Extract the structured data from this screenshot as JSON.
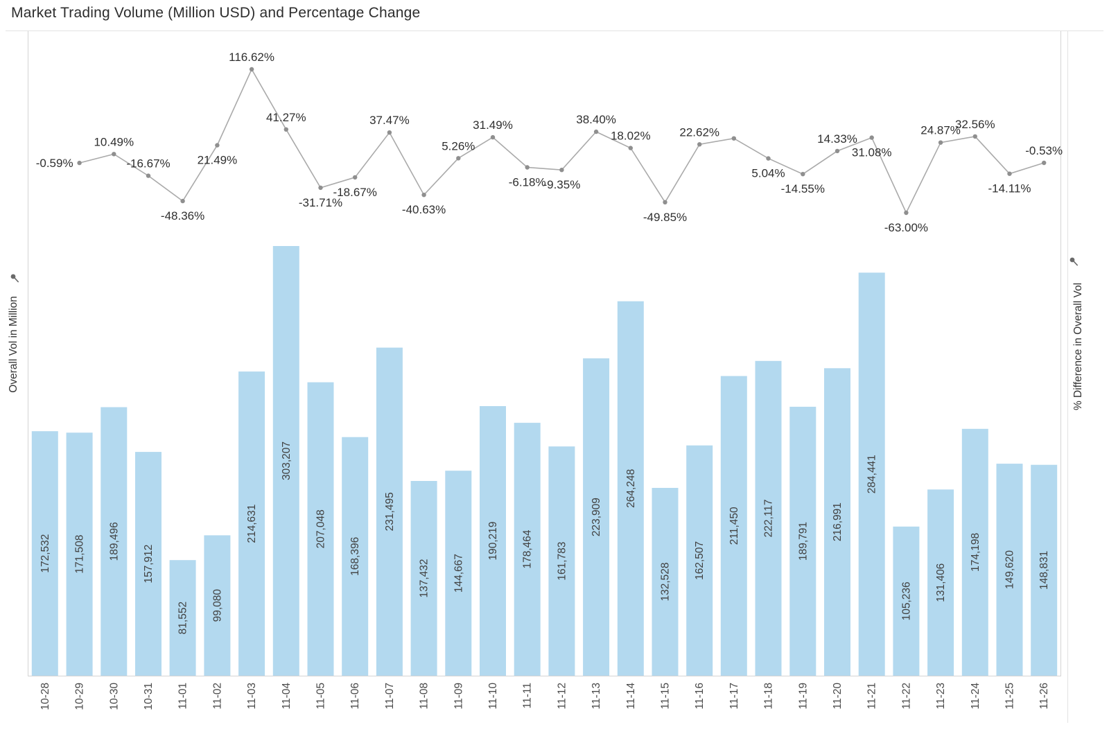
{
  "title": "Market Trading Volume (Million USD) and Percentage Change",
  "axes": {
    "left_label": "Overall Vol in Million",
    "right_label": "% Difference in Overall Vol"
  },
  "colors": {
    "bar": "#b3d9ef",
    "line": "#aaaaaa",
    "marker": "#8f8f8f",
    "bar_label": "#414141",
    "pct_label": "#2f2f2f",
    "axis_line": "#d4d4d4"
  },
  "chart_data": {
    "type": "bar",
    "subtype": "combo-bar-line-dual-axis",
    "categories": [
      "10-28",
      "10-29",
      "10-30",
      "10-31",
      "11-01",
      "11-02",
      "11-03",
      "11-04",
      "11-05",
      "11-06",
      "11-07",
      "11-08",
      "11-09",
      "11-10",
      "11-11",
      "11-12",
      "11-13",
      "11-14",
      "11-15",
      "11-16",
      "11-17",
      "11-18",
      "11-19",
      "11-20",
      "11-21",
      "11-22",
      "11-23",
      "11-24",
      "11-25",
      "11-26"
    ],
    "bar_series": {
      "name": "Overall Vol in Million",
      "values": [
        172532,
        171508,
        189496,
        157912,
        81552,
        99080,
        214631,
        303207,
        207048,
        168396,
        231495,
        137432,
        144667,
        190219,
        178464,
        161783,
        223909,
        264248,
        132528,
        162507,
        211450,
        222117,
        189791,
        216991,
        284441,
        105236,
        131406,
        174198,
        149620,
        148831
      ],
      "labels": [
        "172,532",
        "171,508",
        "189,496",
        "157,912",
        "81,552",
        "99,080",
        "214,631",
        "303,207",
        "207,048",
        "168,396",
        "231,495",
        "137,432",
        "144,667",
        "190,219",
        "178,464",
        "161,783",
        "223,909",
        "264,248",
        "132,528",
        "162,507",
        "211,450",
        "222,117",
        "189,791",
        "216,991",
        "284,441",
        "105,236",
        "131,406",
        "174,198",
        "149,620",
        "148,831"
      ],
      "axis_min": 0
    },
    "line_series": {
      "name": "% Difference in Overall Vol",
      "axis_range_approx": [
        -63,
        116.62
      ],
      "points": [
        {
          "category": "10-29",
          "value": -0.59,
          "label": "-0.59%",
          "label_side": "left"
        },
        {
          "category": "10-30",
          "value": 10.49,
          "label": "10.49%",
          "label_side": "above"
        },
        {
          "category": "10-31",
          "value": -16.67,
          "label": "-16.67%",
          "label_side": "above"
        },
        {
          "category": "11-01",
          "value": -48.36,
          "label": "-48.36%",
          "label_side": "below"
        },
        {
          "category": "11-02",
          "value": 21.49,
          "label": "21.49%",
          "label_side": "below"
        },
        {
          "category": "11-03",
          "value": 116.62,
          "label": "116.62%",
          "label_side": "above"
        },
        {
          "category": "11-04",
          "value": 41.27,
          "label": "41.27%",
          "label_side": "above"
        },
        {
          "category": "11-05",
          "value": -31.71,
          "label": "-31.71%",
          "label_side": "below"
        },
        {
          "category": "11-06",
          "value": -18.67,
          "label": "-18.67%",
          "label_side": "below"
        },
        {
          "category": "11-07",
          "value": 37.47,
          "label": "37.47%",
          "label_side": "above"
        },
        {
          "category": "11-08",
          "value": -40.63,
          "label": "-40.63%",
          "label_side": "below"
        },
        {
          "category": "11-09",
          "value": 5.26,
          "label": "5.26%",
          "label_side": "above"
        },
        {
          "category": "11-10",
          "value": 31.49,
          "label": "31.49%",
          "label_side": "above"
        },
        {
          "category": "11-11",
          "value": -6.18,
          "label": "-6.18%",
          "label_side": "below"
        },
        {
          "category": "11-12",
          "value": -9.35,
          "label": "-9.35%",
          "label_side": "below"
        },
        {
          "category": "11-13",
          "value": 38.4,
          "label": "38.40%",
          "label_side": "above"
        },
        {
          "category": "11-14",
          "value": 18.02,
          "label": "18.02%",
          "label_side": "above"
        },
        {
          "category": "11-15",
          "value": -49.85,
          "label": "-49.85%",
          "label_side": "below"
        },
        {
          "category": "11-16",
          "value": 22.62,
          "label": "22.62%",
          "label_side": "above"
        },
        {
          "category": "11-17",
          "value": 30.12,
          "label": "",
          "label_side": "above"
        },
        {
          "category": "11-18",
          "value": 5.04,
          "label": "5.04%",
          "label_side": "below"
        },
        {
          "category": "11-19",
          "value": -14.55,
          "label": "-14.55%",
          "label_side": "below"
        },
        {
          "category": "11-20",
          "value": 14.33,
          "label": "14.33%",
          "label_side": "above"
        },
        {
          "category": "11-21",
          "value": 31.08,
          "label": "31.08%",
          "label_side": "below"
        },
        {
          "category": "11-22",
          "value": -63.0,
          "label": "-63.00%",
          "label_side": "below"
        },
        {
          "category": "11-23",
          "value": 24.87,
          "label": "24.87%",
          "label_side": "above"
        },
        {
          "category": "11-24",
          "value": 32.56,
          "label": "32.56%",
          "label_side": "above"
        },
        {
          "category": "11-25",
          "value": -14.11,
          "label": "-14.11%",
          "label_side": "below"
        },
        {
          "category": "11-26",
          "value": -0.53,
          "label": "-0.53%",
          "label_side": "above"
        }
      ]
    }
  }
}
